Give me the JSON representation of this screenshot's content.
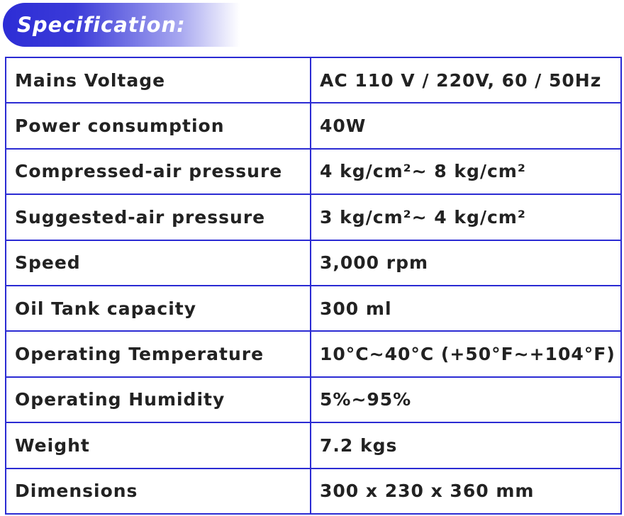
{
  "header": {
    "title": "Specification:"
  },
  "table": {
    "rows": [
      [
        "Mains Voltage",
        "AC 110 V / 220V, 60 / 50Hz"
      ],
      [
        "Power consumption",
        "40W"
      ],
      [
        "Compressed-air pressure",
        "4 kg/cm²~ 8 kg/cm²"
      ],
      [
        "Suggested-air pressure",
        "3 kg/cm²~ 4 kg/cm²"
      ],
      [
        "Speed",
        "3,000 rpm"
      ],
      [
        "Oil Tank capacity",
        "300 ml"
      ],
      [
        "Operating Temperature",
        "10°C~40°C (+50°F~+104°F)"
      ],
      [
        "Operating Humidity",
        "5%~95%"
      ],
      [
        "Weight",
        "7.2 kgs"
      ],
      [
        "Dimensions",
        "300 x 230 x 360 mm"
      ]
    ]
  }
}
